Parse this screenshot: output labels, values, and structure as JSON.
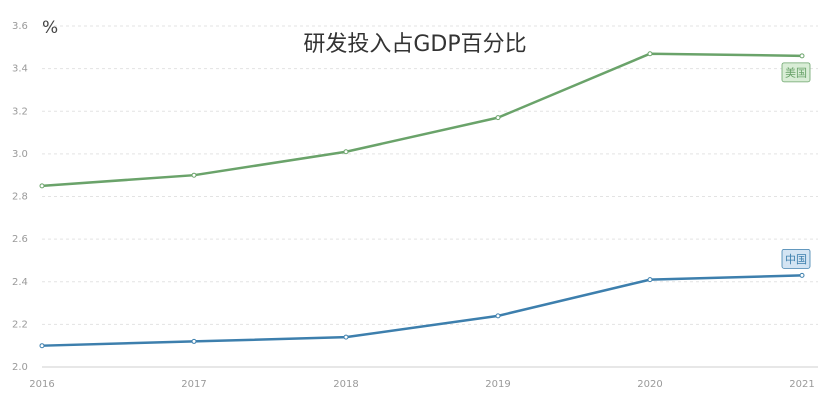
{
  "chart_data": {
    "type": "line",
    "title": "研发投入占GDP百分比",
    "unit_label": "%",
    "x": [
      "2016",
      "2017",
      "2018",
      "2019",
      "2020",
      "2021"
    ],
    "ylim": [
      2.0,
      3.6
    ],
    "yticks": [
      "2.0",
      "2.2",
      "2.4",
      "2.6",
      "2.8",
      "3.0",
      "3.2",
      "3.4",
      "3.6"
    ],
    "grid": true,
    "series": [
      {
        "name": "美国",
        "values": [
          2.85,
          2.9,
          3.01,
          3.17,
          3.47,
          3.46
        ],
        "color": "#6aa36a",
        "label_bg": "#d9edd6"
      },
      {
        "name": "中国",
        "values": [
          2.1,
          2.12,
          2.14,
          2.24,
          2.41,
          2.43
        ],
        "color": "#3d7fad",
        "label_bg": "#d3e4f3"
      }
    ]
  }
}
